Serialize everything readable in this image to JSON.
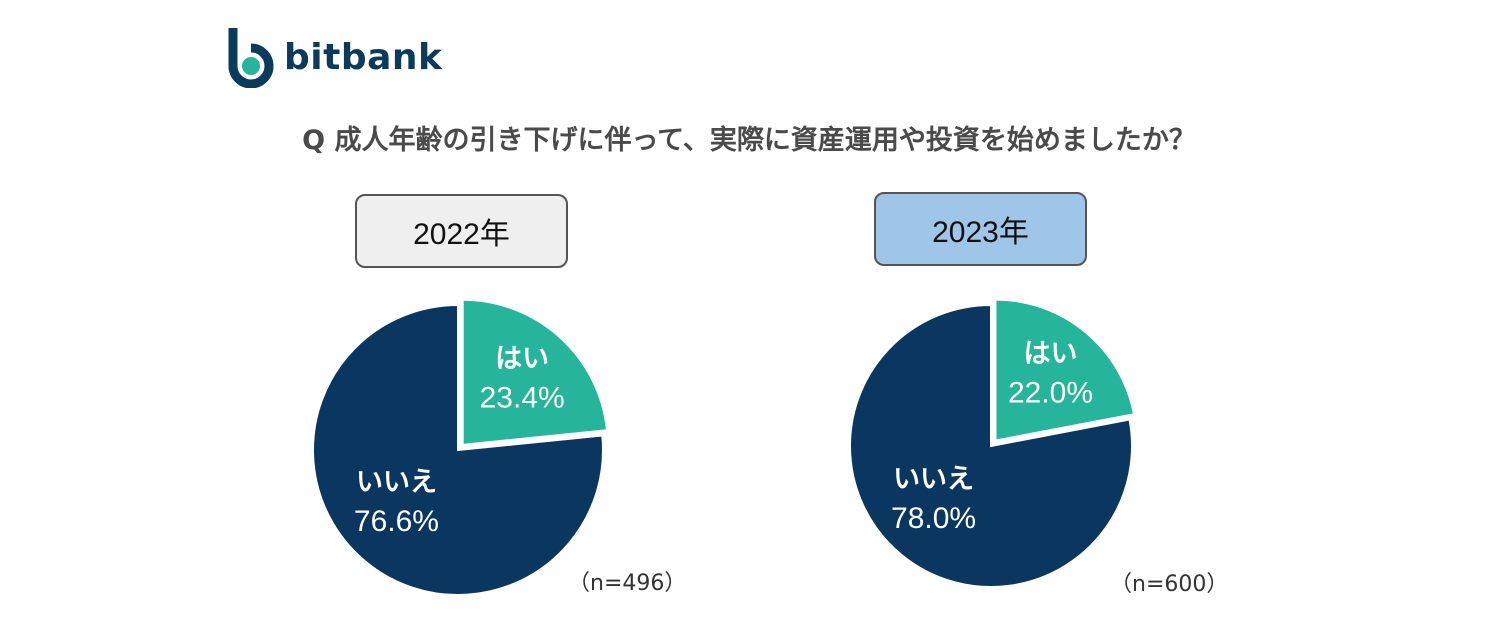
{
  "brand": {
    "name": "bitbank",
    "accent": "#0b3a5b",
    "logo_dot": "#26b59a"
  },
  "question": "Q 成人年齢の引き下げに伴って、実際に資産運用や投資を始めましたか？",
  "chart_data": [
    {
      "type": "pie",
      "title": "2022年",
      "sample": "（n=496）",
      "slices": [
        {
          "label": "はい",
          "value": 23.4,
          "value_label": "23.4%",
          "color": "#26b59a",
          "exploded": true
        },
        {
          "label": "いいえ",
          "value": 76.6,
          "value_label": "76.6%",
          "color": "#0a365f"
        }
      ]
    },
    {
      "type": "pie",
      "title": "2023年",
      "sample": "（n=600）",
      "slices": [
        {
          "label": "はい",
          "value": 22.0,
          "value_label": "22.0%",
          "color": "#26b59a",
          "exploded": true
        },
        {
          "label": "いいえ",
          "value": 78.0,
          "value_label": "78.0%",
          "color": "#0a365f"
        }
      ]
    }
  ]
}
